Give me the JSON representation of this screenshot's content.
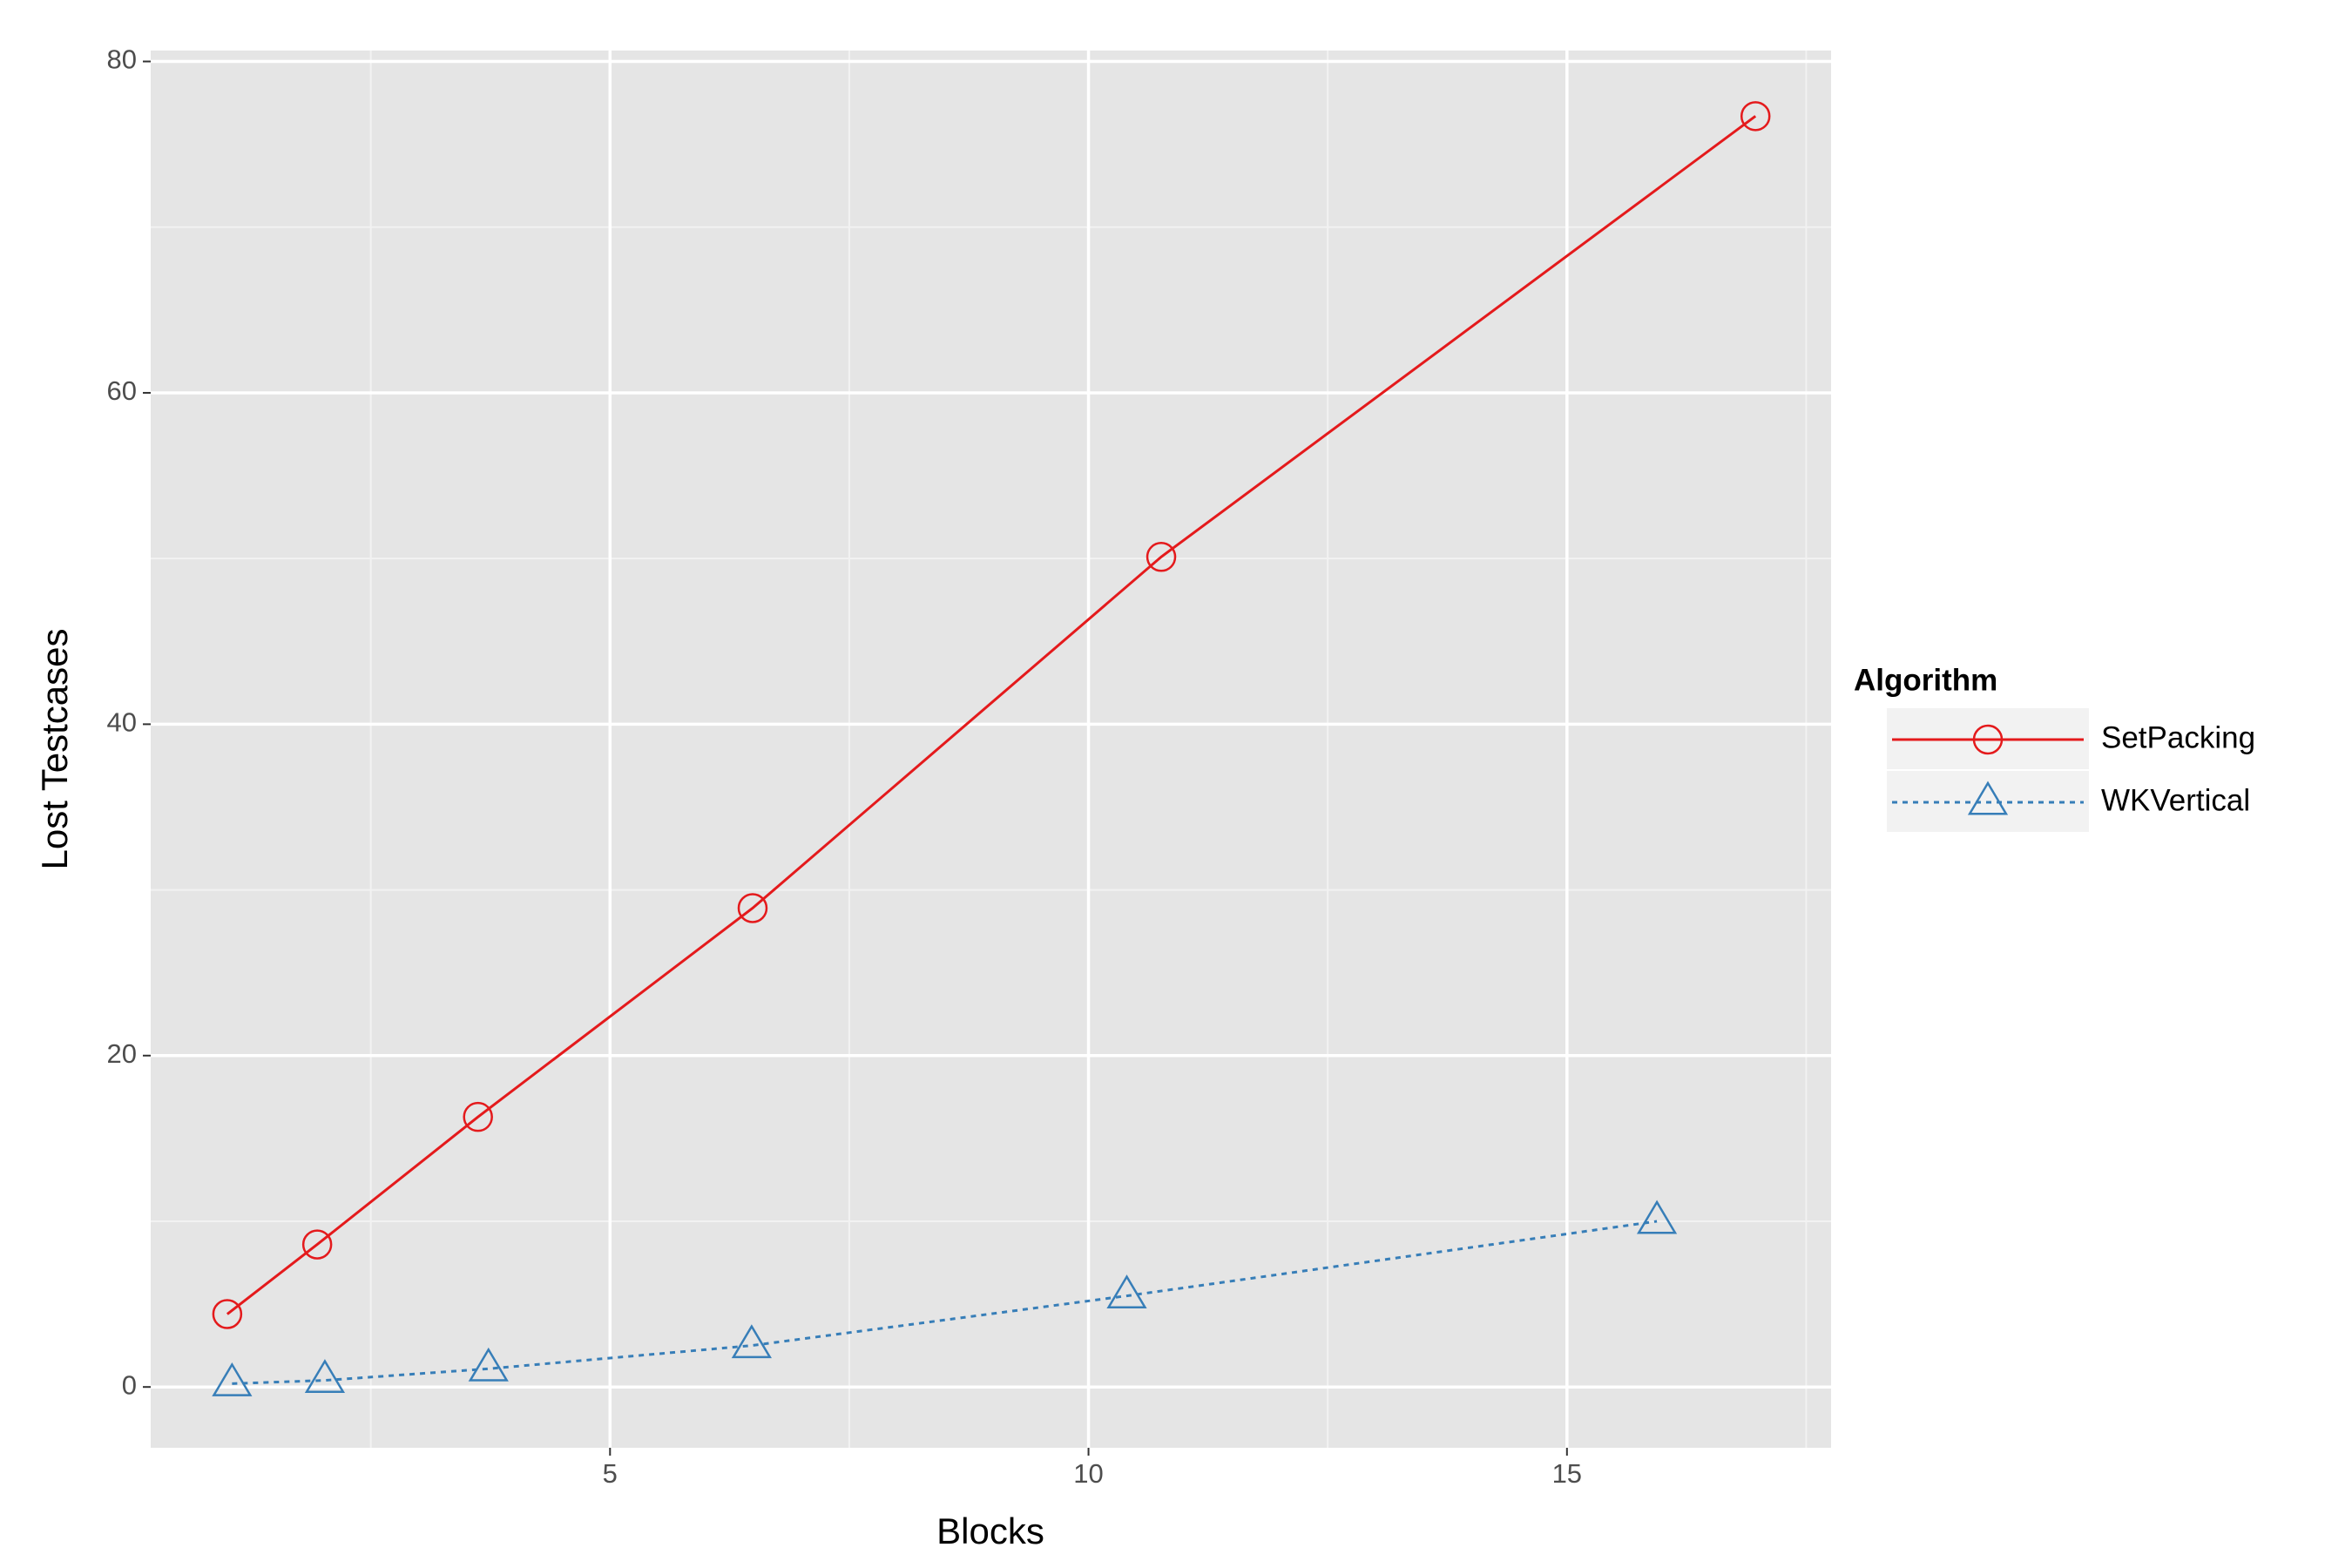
{
  "chart_data": {
    "type": "line",
    "x_label": "Blocks",
    "y_label": "Lost Testcases",
    "legend_title": "Algorithm",
    "xlim": [
      0.2,
      17.76
    ],
    "ylim": [
      -3.67,
      80.66
    ],
    "xticks": [
      5,
      10,
      15
    ],
    "yticks": [
      0,
      20,
      40,
      60,
      80
    ],
    "grid": true,
    "legend_position": "right",
    "background": "#e5e5e5",
    "series": [
      {
        "name": "SetPacking",
        "color": "#e41a1c",
        "linestyle": "solid",
        "marker": "circle",
        "x": [
          1.0,
          1.94,
          3.62,
          6.49,
          10.76,
          16.97
        ],
        "values": [
          4.4,
          8.6,
          16.3,
          28.9,
          50.1,
          76.7
        ]
      },
      {
        "name": "WKVertical",
        "color": "#377eb8",
        "linestyle": "dotted",
        "marker": "triangle",
        "x": [
          1.05,
          2.02,
          3.73,
          6.48,
          10.4,
          15.94
        ],
        "values": [
          0.2,
          0.4,
          1.1,
          2.5,
          5.5,
          10.0
        ]
      }
    ]
  }
}
